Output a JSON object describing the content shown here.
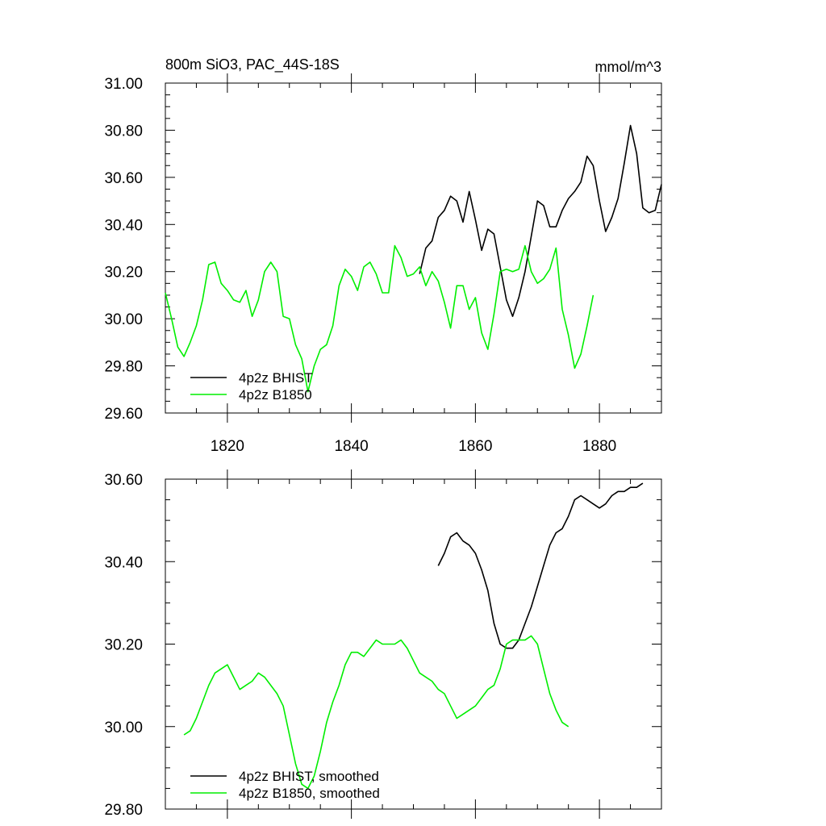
{
  "chart_data": [
    {
      "type": "line",
      "title": "800m SiO3, PAC_44S-18S",
      "units": "mmol/m^3",
      "xlim": [
        1810,
        1890
      ],
      "ylim": [
        29.6,
        31.0
      ],
      "xticks": [
        1820,
        1840,
        1860,
        1880
      ],
      "yticks": [
        "29.60",
        "29.80",
        "30.00",
        "30.20",
        "30.40",
        "30.60",
        "30.80",
        "31.00"
      ],
      "legend": "bottom-left",
      "series": [
        {
          "name": "4p2z BHIST",
          "color": "#000000",
          "x0": 1851,
          "values": [
            30.19,
            30.3,
            30.33,
            30.43,
            30.46,
            30.52,
            30.5,
            30.41,
            30.54,
            30.42,
            30.29,
            30.38,
            30.36,
            30.22,
            30.08,
            30.01,
            30.09,
            30.2,
            30.35,
            30.5,
            30.48,
            30.39,
            30.39,
            30.46,
            30.51,
            30.54,
            30.58,
            30.69,
            30.65,
            30.5,
            30.37,
            30.43,
            30.51,
            30.66,
            30.82,
            30.7,
            30.47,
            30.45,
            30.46,
            30.57
          ]
        },
        {
          "name": "4p2z B1850",
          "color": "#00ee00",
          "x0": 1810,
          "values": [
            30.11,
            30.0,
            29.88,
            29.84,
            29.9,
            29.97,
            30.08,
            30.23,
            30.24,
            30.15,
            30.12,
            30.08,
            30.07,
            30.12,
            30.01,
            30.08,
            30.2,
            30.24,
            30.2,
            30.01,
            30.0,
            29.89,
            29.83,
            29.69,
            29.8,
            29.87,
            29.89,
            29.97,
            30.14,
            30.21,
            30.18,
            30.12,
            30.22,
            30.24,
            30.19,
            30.11,
            30.11,
            30.31,
            30.26,
            30.18,
            30.19,
            30.22,
            30.14,
            30.2,
            30.16,
            30.07,
            29.96,
            30.14,
            30.14,
            30.04,
            30.09,
            29.94,
            29.87,
            30.02,
            30.2,
            30.21,
            30.2,
            30.21,
            30.31,
            30.2,
            30.15,
            30.17,
            30.21,
            30.3,
            30.04,
            29.93,
            29.79,
            29.85,
            29.97,
            30.1
          ]
        }
      ]
    },
    {
      "type": "line",
      "title": "",
      "units": "",
      "xlim": [
        1810,
        1890
      ],
      "ylim": [
        29.8,
        30.6
      ],
      "xticks": [
        1820,
        1840,
        1860,
        1880
      ],
      "yticks": [
        "29.80",
        "30.00",
        "30.20",
        "30.40",
        "30.60"
      ],
      "legend": "bottom-left",
      "series": [
        {
          "name": "4p2z BHIST, smoothed",
          "color": "#000000",
          "x0": 1854,
          "values": [
            30.39,
            30.42,
            30.46,
            30.47,
            30.45,
            30.44,
            30.42,
            30.38,
            30.33,
            30.25,
            30.2,
            30.19,
            30.19,
            30.21,
            30.25,
            30.29,
            30.34,
            30.39,
            30.44,
            30.47,
            30.48,
            30.51,
            30.55,
            30.56,
            30.55,
            30.54,
            30.53,
            30.54,
            30.56,
            30.57,
            30.57,
            30.58,
            30.58,
            30.59
          ]
        },
        {
          "name": "4p2z B1850, smoothed",
          "color": "#00ee00",
          "x0": 1813,
          "values": [
            29.98,
            29.99,
            30.02,
            30.06,
            30.1,
            30.13,
            30.14,
            30.15,
            30.12,
            30.09,
            30.1,
            30.11,
            30.13,
            30.12,
            30.1,
            30.08,
            30.05,
            29.98,
            29.91,
            29.86,
            29.85,
            29.88,
            29.94,
            30.01,
            30.06,
            30.1,
            30.15,
            30.18,
            30.18,
            30.17,
            30.19,
            30.21,
            30.2,
            30.2,
            30.2,
            30.21,
            30.19,
            30.16,
            30.13,
            30.12,
            30.11,
            30.09,
            30.08,
            30.05,
            30.02,
            30.03,
            30.04,
            30.05,
            30.07,
            30.09,
            30.1,
            30.14,
            30.2,
            30.21,
            30.21,
            30.21,
            30.22,
            30.2,
            30.14,
            30.08,
            30.04,
            30.01,
            30.0
          ]
        }
      ]
    }
  ]
}
